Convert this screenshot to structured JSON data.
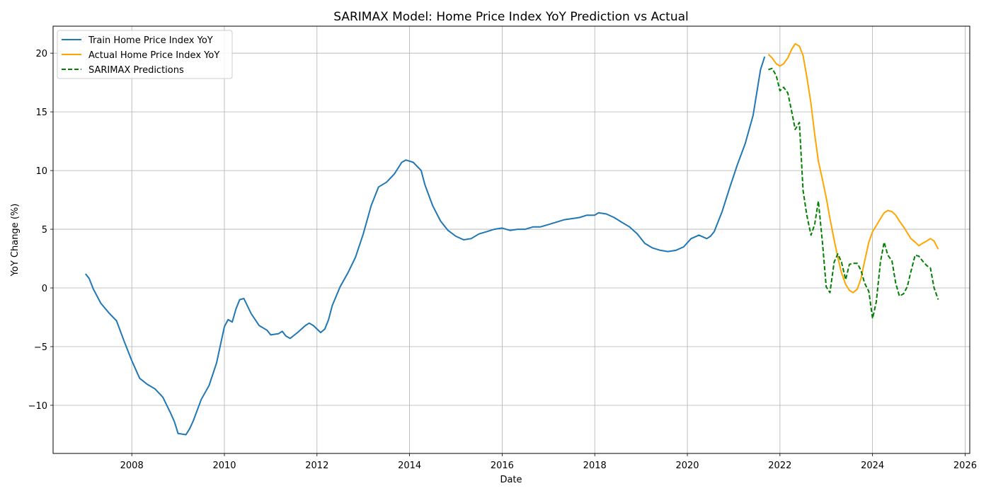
{
  "chart_data": {
    "type": "line",
    "title": "SARIMAX Model: Home Price Index YoY Prediction vs Actual",
    "xlabel": "Date",
    "ylabel": "YoY Change (%)",
    "xlim": [
      2006.3,
      2026.1
    ],
    "ylim": [
      -14.1,
      22.3
    ],
    "grid": true,
    "legend_position": "upper-left",
    "x_ticks": [
      2008,
      2010,
      2012,
      2014,
      2016,
      2018,
      2020,
      2022,
      2024,
      2026
    ],
    "x_tick_labels": [
      "2008",
      "2010",
      "2012",
      "2014",
      "2016",
      "2018",
      "2020",
      "2022",
      "2024",
      "2026"
    ],
    "y_ticks": [
      -10,
      -5,
      0,
      5,
      10,
      15,
      20
    ],
    "y_tick_labels": [
      "−10",
      "−5",
      "0",
      "5",
      "10",
      "15",
      "20"
    ],
    "series": [
      {
        "name": "Train Home Price Index YoY",
        "color": "#1f77b4",
        "dash": "solid",
        "points": [
          [
            2007.0,
            1.2
          ],
          [
            2007.08,
            0.8
          ],
          [
            2007.17,
            -0.1
          ],
          [
            2007.33,
            -1.3
          ],
          [
            2007.5,
            -2.1
          ],
          [
            2007.67,
            -2.8
          ],
          [
            2007.83,
            -4.5
          ],
          [
            2008.0,
            -6.2
          ],
          [
            2008.17,
            -7.7
          ],
          [
            2008.33,
            -8.2
          ],
          [
            2008.5,
            -8.6
          ],
          [
            2008.67,
            -9.3
          ],
          [
            2008.83,
            -10.6
          ],
          [
            2008.92,
            -11.4
          ],
          [
            2009.0,
            -12.4
          ],
          [
            2009.17,
            -12.5
          ],
          [
            2009.25,
            -12.0
          ],
          [
            2009.33,
            -11.3
          ],
          [
            2009.5,
            -9.5
          ],
          [
            2009.67,
            -8.3
          ],
          [
            2009.83,
            -6.4
          ],
          [
            2010.0,
            -3.3
          ],
          [
            2010.08,
            -2.7
          ],
          [
            2010.17,
            -2.9
          ],
          [
            2010.25,
            -1.8
          ],
          [
            2010.33,
            -1.0
          ],
          [
            2010.42,
            -0.9
          ],
          [
            2010.58,
            -2.2
          ],
          [
            2010.75,
            -3.2
          ],
          [
            2010.92,
            -3.6
          ],
          [
            2011.0,
            -4.0
          ],
          [
            2011.17,
            -3.9
          ],
          [
            2011.25,
            -3.7
          ],
          [
            2011.33,
            -4.1
          ],
          [
            2011.42,
            -4.3
          ],
          [
            2011.58,
            -3.8
          ],
          [
            2011.75,
            -3.2
          ],
          [
            2011.83,
            -3.0
          ],
          [
            2011.92,
            -3.2
          ],
          [
            2012.0,
            -3.5
          ],
          [
            2012.08,
            -3.8
          ],
          [
            2012.17,
            -3.5
          ],
          [
            2012.25,
            -2.7
          ],
          [
            2012.33,
            -1.5
          ],
          [
            2012.5,
            0.1
          ],
          [
            2012.67,
            1.3
          ],
          [
            2012.83,
            2.6
          ],
          [
            2013.0,
            4.6
          ],
          [
            2013.17,
            7.0
          ],
          [
            2013.33,
            8.6
          ],
          [
            2013.5,
            9.0
          ],
          [
            2013.67,
            9.7
          ],
          [
            2013.83,
            10.7
          ],
          [
            2013.92,
            10.9
          ],
          [
            2014.0,
            10.8
          ],
          [
            2014.08,
            10.7
          ],
          [
            2014.25,
            10.0
          ],
          [
            2014.33,
            8.8
          ],
          [
            2014.5,
            7.0
          ],
          [
            2014.67,
            5.7
          ],
          [
            2014.83,
            4.9
          ],
          [
            2015.0,
            4.4
          ],
          [
            2015.17,
            4.1
          ],
          [
            2015.33,
            4.2
          ],
          [
            2015.5,
            4.6
          ],
          [
            2015.67,
            4.8
          ],
          [
            2015.83,
            5.0
          ],
          [
            2016.0,
            5.1
          ],
          [
            2016.17,
            4.9
          ],
          [
            2016.33,
            5.0
          ],
          [
            2016.5,
            5.0
          ],
          [
            2016.67,
            5.2
          ],
          [
            2016.83,
            5.2
          ],
          [
            2017.0,
            5.4
          ],
          [
            2017.17,
            5.6
          ],
          [
            2017.33,
            5.8
          ],
          [
            2017.5,
            5.9
          ],
          [
            2017.67,
            6.0
          ],
          [
            2017.83,
            6.2
          ],
          [
            2018.0,
            6.2
          ],
          [
            2018.08,
            6.4
          ],
          [
            2018.25,
            6.3
          ],
          [
            2018.42,
            6.0
          ],
          [
            2018.58,
            5.6
          ],
          [
            2018.75,
            5.2
          ],
          [
            2018.92,
            4.6
          ],
          [
            2019.08,
            3.8
          ],
          [
            2019.25,
            3.4
          ],
          [
            2019.42,
            3.2
          ],
          [
            2019.58,
            3.1
          ],
          [
            2019.75,
            3.2
          ],
          [
            2019.92,
            3.5
          ],
          [
            2020.08,
            4.2
          ],
          [
            2020.25,
            4.5
          ],
          [
            2020.42,
            4.2
          ],
          [
            2020.5,
            4.4
          ],
          [
            2020.58,
            4.8
          ],
          [
            2020.75,
            6.5
          ],
          [
            2020.92,
            8.6
          ],
          [
            2021.08,
            10.5
          ],
          [
            2021.25,
            12.3
          ],
          [
            2021.42,
            14.7
          ],
          [
            2021.58,
            18.6
          ],
          [
            2021.67,
            19.7
          ]
        ]
      },
      {
        "name": "Actual Home Price Index YoY",
        "color": "#ffa500",
        "dash": "solid",
        "points": [
          [
            2021.75,
            19.9
          ],
          [
            2021.83,
            19.6
          ],
          [
            2021.92,
            19.1
          ],
          [
            2022.0,
            18.9
          ],
          [
            2022.08,
            19.1
          ],
          [
            2022.17,
            19.6
          ],
          [
            2022.25,
            20.3
          ],
          [
            2022.33,
            20.8
          ],
          [
            2022.42,
            20.6
          ],
          [
            2022.5,
            19.8
          ],
          [
            2022.58,
            18.0
          ],
          [
            2022.67,
            15.7
          ],
          [
            2022.75,
            13.1
          ],
          [
            2022.83,
            10.8
          ],
          [
            2022.92,
            9.2
          ],
          [
            2023.0,
            7.7
          ],
          [
            2023.08,
            5.9
          ],
          [
            2023.17,
            4.1
          ],
          [
            2023.25,
            2.6
          ],
          [
            2023.33,
            1.3
          ],
          [
            2023.42,
            0.3
          ],
          [
            2023.5,
            -0.2
          ],
          [
            2023.58,
            -0.4
          ],
          [
            2023.67,
            -0.1
          ],
          [
            2023.75,
            0.8
          ],
          [
            2023.83,
            2.3
          ],
          [
            2023.92,
            3.9
          ],
          [
            2024.0,
            4.8
          ],
          [
            2024.08,
            5.3
          ],
          [
            2024.17,
            5.9
          ],
          [
            2024.25,
            6.4
          ],
          [
            2024.33,
            6.6
          ],
          [
            2024.42,
            6.5
          ],
          [
            2024.5,
            6.2
          ],
          [
            2024.58,
            5.7
          ],
          [
            2024.67,
            5.2
          ],
          [
            2024.75,
            4.7
          ],
          [
            2024.83,
            4.2
          ],
          [
            2024.92,
            3.9
          ],
          [
            2025.0,
            3.6
          ],
          [
            2025.08,
            3.8
          ],
          [
            2025.17,
            4.0
          ],
          [
            2025.25,
            4.2
          ],
          [
            2025.33,
            4.0
          ],
          [
            2025.42,
            3.3
          ]
        ]
      },
      {
        "name": "SARIMAX Predictions",
        "color": "#008000",
        "dash": "dashed",
        "points": [
          [
            2021.75,
            18.6
          ],
          [
            2021.83,
            18.7
          ],
          [
            2021.92,
            18.1
          ],
          [
            2022.0,
            16.8
          ],
          [
            2022.08,
            17.1
          ],
          [
            2022.17,
            16.6
          ],
          [
            2022.25,
            15.1
          ],
          [
            2022.33,
            13.5
          ],
          [
            2022.42,
            14.1
          ],
          [
            2022.5,
            8.3
          ],
          [
            2022.58,
            6.2
          ],
          [
            2022.67,
            4.5
          ],
          [
            2022.75,
            5.4
          ],
          [
            2022.83,
            7.4
          ],
          [
            2022.92,
            3.8
          ],
          [
            2023.0,
            0.1
          ],
          [
            2023.08,
            -0.4
          ],
          [
            2023.17,
            2.2
          ],
          [
            2023.25,
            2.9
          ],
          [
            2023.33,
            2.2
          ],
          [
            2023.42,
            0.7
          ],
          [
            2023.5,
            2.0
          ],
          [
            2023.58,
            2.1
          ],
          [
            2023.67,
            2.1
          ],
          [
            2023.75,
            1.5
          ],
          [
            2023.83,
            0.4
          ],
          [
            2023.92,
            -0.3
          ],
          [
            2024.0,
            -2.6
          ],
          [
            2024.08,
            -1.2
          ],
          [
            2024.17,
            2.2
          ],
          [
            2024.25,
            3.9
          ],
          [
            2024.33,
            2.8
          ],
          [
            2024.42,
            2.3
          ],
          [
            2024.5,
            0.4
          ],
          [
            2024.58,
            -0.7
          ],
          [
            2024.67,
            -0.5
          ],
          [
            2024.75,
            0.1
          ],
          [
            2024.83,
            1.4
          ],
          [
            2024.92,
            2.8
          ],
          [
            2025.0,
            2.7
          ],
          [
            2025.08,
            2.3
          ],
          [
            2025.17,
            1.9
          ],
          [
            2025.25,
            1.7
          ],
          [
            2025.33,
            0.0
          ],
          [
            2025.42,
            -1.0
          ]
        ]
      }
    ]
  }
}
